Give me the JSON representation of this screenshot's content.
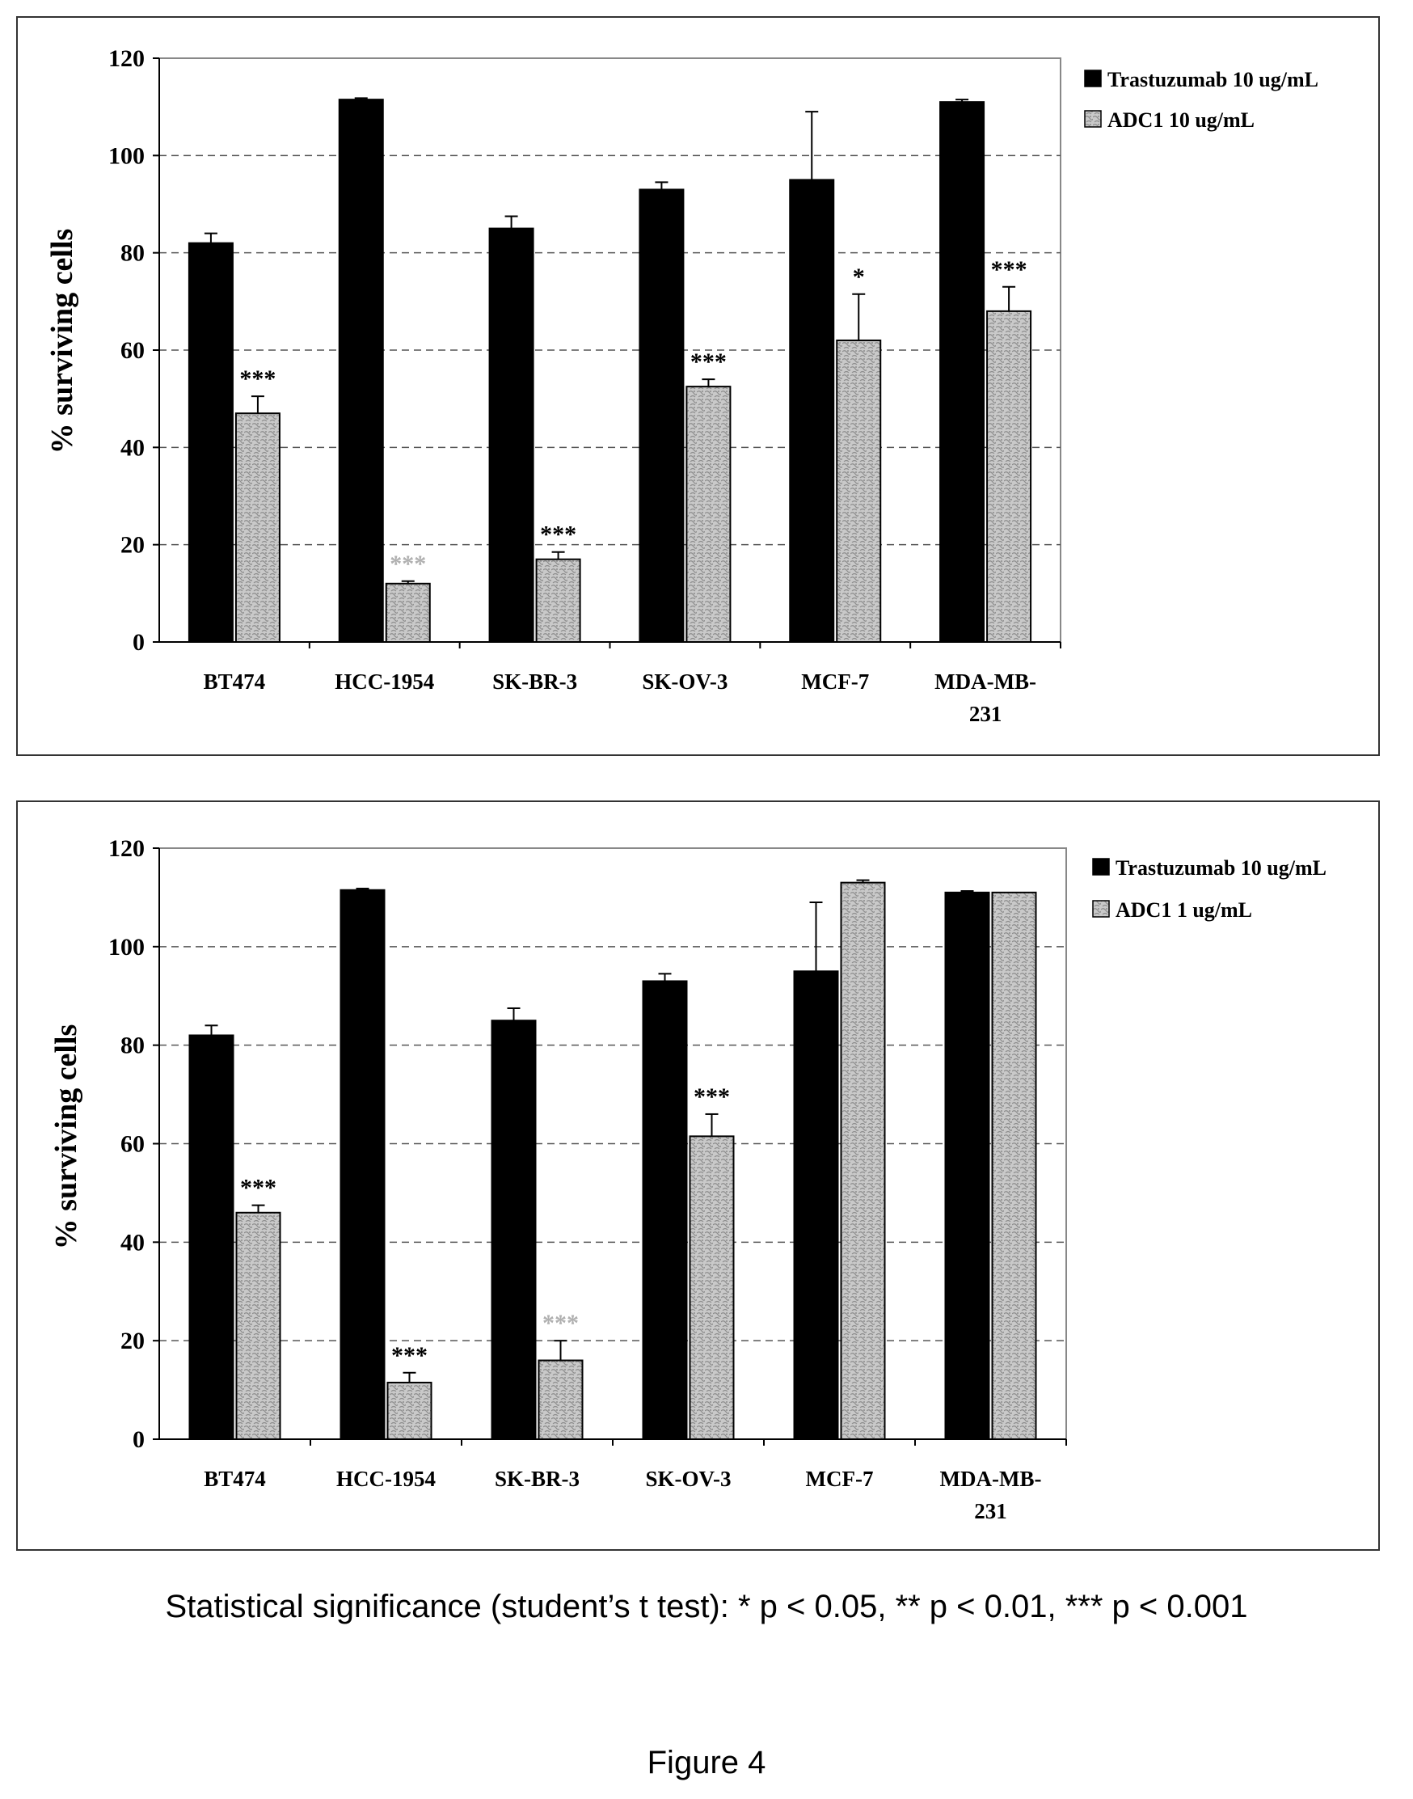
{
  "chart_data": [
    {
      "type": "bar",
      "ylabel": "% surviving cells",
      "ylim": [
        0,
        120
      ],
      "yticks": [
        0,
        20,
        40,
        60,
        80,
        100,
        120
      ],
      "grid": "horizontal dashed",
      "legend_position": "right",
      "categories": [
        "BT474",
        "HCC-1954",
        "SK-BR-3",
        "SK-OV-3",
        "MCF-7",
        "MDA-MB-231"
      ],
      "series": [
        {
          "name": "Trastuzumab 10 ug/mL",
          "color": "#000000",
          "values": [
            82,
            111.5,
            85,
            93,
            95,
            111
          ],
          "errors": [
            2,
            0.3,
            2.5,
            1.5,
            14,
            0.5
          ],
          "sig": [
            "",
            "",
            "",
            "",
            "",
            ""
          ]
        },
        {
          "name": "ADC1 10 ug/mL",
          "color": "#c4c4c4",
          "values": [
            47,
            12,
            17,
            52.5,
            62,
            68
          ],
          "errors": [
            3.5,
            0.5,
            1.5,
            1.5,
            9.5,
            5
          ],
          "sig": [
            "***",
            "***",
            "***",
            "***",
            "*",
            "***"
          ],
          "sig_faint": [
            false,
            true,
            false,
            false,
            false,
            false
          ]
        }
      ]
    },
    {
      "type": "bar",
      "ylabel": "% surviving cells",
      "ylim": [
        0,
        120
      ],
      "yticks": [
        0,
        20,
        40,
        60,
        80,
        100,
        120
      ],
      "grid": "horizontal dashed",
      "legend_position": "right",
      "categories": [
        "BT474",
        "HCC-1954",
        "SK-BR-3",
        "SK-OV-3",
        "MCF-7",
        "MDA-MB-231"
      ],
      "series": [
        {
          "name": "Trastuzumab 10 ug/mL",
          "color": "#000000",
          "values": [
            82,
            111.5,
            85,
            93,
            95,
            111
          ],
          "errors": [
            2,
            0.3,
            2.5,
            1.5,
            14,
            0.3
          ],
          "sig": [
            "",
            "",
            "",
            "",
            "",
            ""
          ]
        },
        {
          "name": "ADC1 1 ug/mL",
          "color": "#c4c4c4",
          "values": [
            46,
            11.5,
            16,
            61.5,
            113,
            111
          ],
          "errors": [
            1.5,
            2,
            4,
            4.5,
            0.5,
            0
          ],
          "sig": [
            "***",
            "***",
            "***",
            "***",
            "",
            ""
          ],
          "sig_faint": [
            false,
            false,
            true,
            false,
            false,
            false
          ]
        }
      ]
    }
  ],
  "footnote": "Statistical significance (student’s t test): * p < 0.05, ** p < 0.01, *** p < 0.001",
  "figure_label": "Figure 4"
}
